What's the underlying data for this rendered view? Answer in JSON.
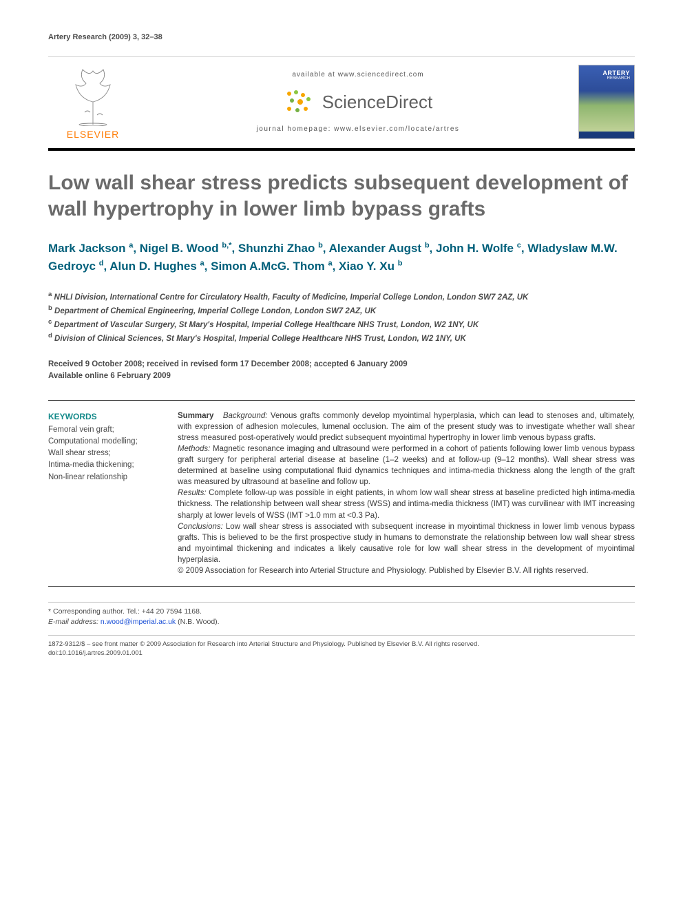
{
  "running_head": "Artery Research (2009) 3, 32–38",
  "masthead": {
    "publisher_word": "ELSEVIER",
    "available_line": "available at www.sciencedirect.com",
    "sd_word": "ScienceDirect",
    "homepage_line": "journal homepage: www.elsevier.com/locate/artres",
    "cover_title": "ARTERY",
    "cover_sub": "RESEARCH"
  },
  "title": "Low wall shear stress predicts subsequent development of wall hypertrophy in lower limb bypass grafts",
  "authors_html_parts": [
    {
      "name": "Mark Jackson",
      "sup": "a"
    },
    {
      "name": "Nigel B. Wood",
      "sup": "b,*"
    },
    {
      "name": "Shunzhi Zhao",
      "sup": "b"
    },
    {
      "name": "Alexander Augst",
      "sup": "b"
    },
    {
      "name": "John H. Wolfe",
      "sup": "c"
    },
    {
      "name": "Wladyslaw M.W. Gedroyc",
      "sup": "d"
    },
    {
      "name": "Alun D. Hughes",
      "sup": "a"
    },
    {
      "name": "Simon A.McG. Thom",
      "sup": "a"
    },
    {
      "name": "Xiao Y. Xu",
      "sup": "b"
    }
  ],
  "affiliations": [
    {
      "sup": "a",
      "text": "NHLI Division, International Centre for Circulatory Health, Faculty of Medicine, Imperial College London, London SW7 2AZ, UK"
    },
    {
      "sup": "b",
      "text": "Department of Chemical Engineering, Imperial College London, London SW7 2AZ, UK"
    },
    {
      "sup": "c",
      "text": "Department of Vascular Surgery, St Mary's Hospital, Imperial College Healthcare NHS Trust, London, W2 1NY, UK"
    },
    {
      "sup": "d",
      "text": "Division of Clinical Sciences, St Mary's Hospital, Imperial College Healthcare NHS Trust, London, W2 1NY, UK"
    }
  ],
  "history_line1": "Received 9 October 2008; received in revised form 17 December 2008; accepted 6 January 2009",
  "history_line2": "Available online 6 February 2009",
  "keywords_heading": "KEYWORDS",
  "keywords": [
    "Femoral vein graft;",
    "Computational modelling;",
    "Wall shear stress;",
    "Intima-media thickening;",
    "Non-linear relationship"
  ],
  "summary_lead": "Summary",
  "summary_sections": {
    "background_label": "Background:",
    "background_text": " Venous grafts commonly develop myointimal hyperplasia, which can lead to stenoses and, ultimately, with expression of adhesion molecules, lumenal occlusion. The aim of the present study was to investigate whether wall shear stress measured post-operatively would predict subsequent myointimal hypertrophy in lower limb venous bypass grafts.",
    "methods_label": "Methods:",
    "methods_text": " Magnetic resonance imaging and ultrasound were performed in a cohort of patients following lower limb venous bypass graft surgery for peripheral arterial disease at baseline (1–2 weeks) and at follow-up (9–12 months). Wall shear stress was determined at baseline using computational fluid dynamics techniques and intima-media thickness along the length of the graft was measured by ultrasound at baseline and follow up.",
    "results_label": "Results:",
    "results_text": " Complete follow-up was possible in eight patients, in whom low wall shear stress at baseline predicted high intima-media thickness. The relationship between wall shear stress (WSS) and intima-media thickness (IMT) was curvilinear with IMT increasing sharply at lower levels of WSS (IMT >1.0 mm at <0.3 Pa).",
    "conclusions_label": "Conclusions:",
    "conclusions_text": " Low wall shear stress is associated with subsequent increase in myointimal thickness in lower limb venous bypass grafts. This is believed to be the first prospective study in humans to demonstrate the relationship between low wall shear stress and myointimal thickening and indicates a likely causative role for low wall shear stress in the development of myointimal hyperplasia.",
    "copyright_text": "© 2009 Association for Research into Arterial Structure and Physiology. Published by Elsevier B.V. All rights reserved."
  },
  "corresponding": {
    "line1": "* Corresponding author. Tel.: +44 20 7594 1168.",
    "email_label": "E-mail address:",
    "email": "n.wood@imperial.ac.uk",
    "email_suffix": " (N.B. Wood)."
  },
  "legal": {
    "line1": "1872-9312/$ – see front matter © 2009 Association for Research into Arterial Structure and Physiology. Published by Elsevier B.V. All rights reserved.",
    "line2": "doi:10.1016/j.artres.2009.01.001"
  },
  "colors": {
    "title_gray": "#6a6a6a",
    "author_teal": "#005f7a",
    "keyword_teal": "#148a8a",
    "elsevier_orange": "#ff7a00",
    "rule_black": "#000000",
    "link_blue": "#1a4fd6"
  }
}
